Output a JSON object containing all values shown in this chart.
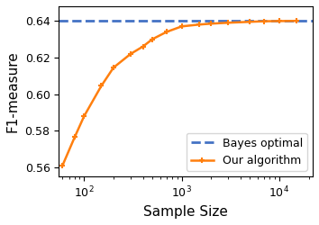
{
  "bayes_optimal": 0.64,
  "bayes_color": "#4472c4",
  "algo_color": "#ff7f0e",
  "xlabel": "Sample Size",
  "ylabel": "F1-measure",
  "legend_bayes": "Bayes optimal",
  "legend_algo": "Our algorithm",
  "xlim_log": [
    55,
    22000
  ],
  "ylim": [
    0.555,
    0.648
  ],
  "x_data": [
    60,
    80,
    100,
    150,
    200,
    300,
    400,
    500,
    700,
    1000,
    1500,
    2000,
    3000,
    5000,
    7000,
    10000,
    15000
  ],
  "y_data": [
    0.561,
    0.5765,
    0.588,
    0.6045,
    0.6145,
    0.622,
    0.626,
    0.63,
    0.634,
    0.637,
    0.638,
    0.6385,
    0.639,
    0.6395,
    0.6398,
    0.6399,
    0.64
  ]
}
